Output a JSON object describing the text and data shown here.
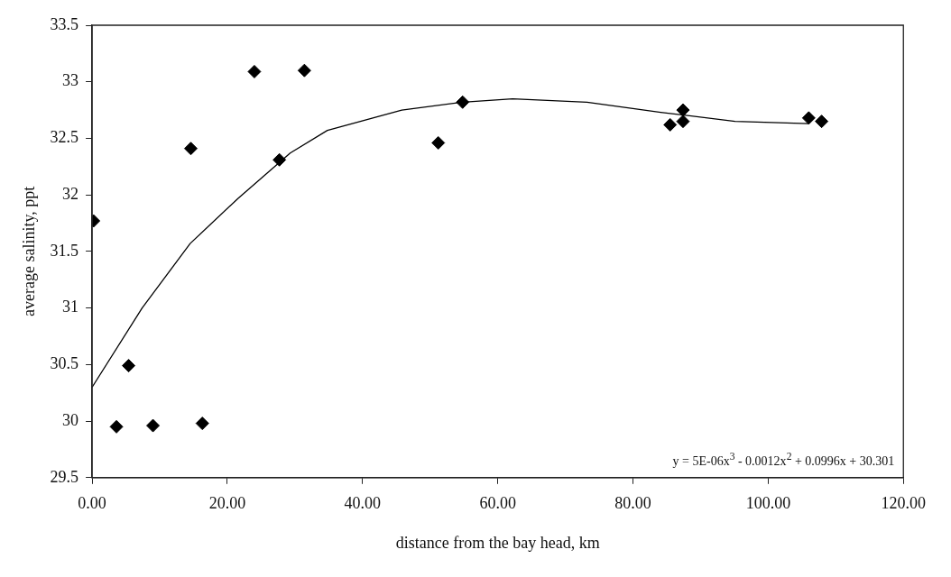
{
  "chart_data": {
    "type": "scatter",
    "xlabel": "distance from the bay head, km",
    "ylabel": "average salinity, ppt",
    "xlim": [
      0,
      120
    ],
    "xticks": [
      {
        "value": 0,
        "label": "0.00"
      },
      {
        "value": 20,
        "label": "20.00"
      },
      {
        "value": 40,
        "label": "40.00"
      },
      {
        "value": 60,
        "label": "60.00"
      },
      {
        "value": 80,
        "label": "80.00"
      },
      {
        "value": 100,
        "label": "100.00"
      },
      {
        "value": 120,
        "label": "120.00"
      }
    ],
    "ylim": [
      29.5,
      33.5
    ],
    "yticks": [
      29.5,
      30,
      30.5,
      31,
      31.5,
      32,
      32.5,
      33,
      33.5
    ],
    "grid": false,
    "legend": false,
    "marker": "diamond",
    "annotations": [
      "y = 5E-06x$^{3}$ - 0.0012x$^{2}$ + 0.0996x + 30.301"
    ],
    "series": [
      {
        "type": "scatter",
        "color": "#000000",
        "x": [
          0.2,
          3.6,
          5.4,
          9.0,
          14.6,
          16.3,
          24.0,
          27.7,
          31.4,
          51.2,
          54.8,
          85.5,
          87.4,
          87.4,
          106.0,
          107.9
        ],
        "values": [
          31.77,
          29.95,
          30.49,
          29.96,
          32.41,
          29.98,
          33.09,
          32.31,
          33.1,
          32.46,
          32.82,
          32.62,
          32.75,
          32.65,
          32.68,
          32.65
        ]
      },
      {
        "type": "line",
        "color": "#000000",
        "marker": "none",
        "line_style": "solid",
        "x": [
          0,
          7.4,
          14.5,
          21.6,
          29.3,
          34.8,
          45.8,
          54.8,
          62.2,
          73.2,
          84.1,
          95.1,
          106.0
        ],
        "values": [
          30.3,
          31.0,
          31.57,
          31.97,
          32.37,
          32.57,
          32.75,
          32.82,
          32.85,
          32.82,
          32.73,
          32.65,
          32.63
        ]
      }
    ]
  }
}
